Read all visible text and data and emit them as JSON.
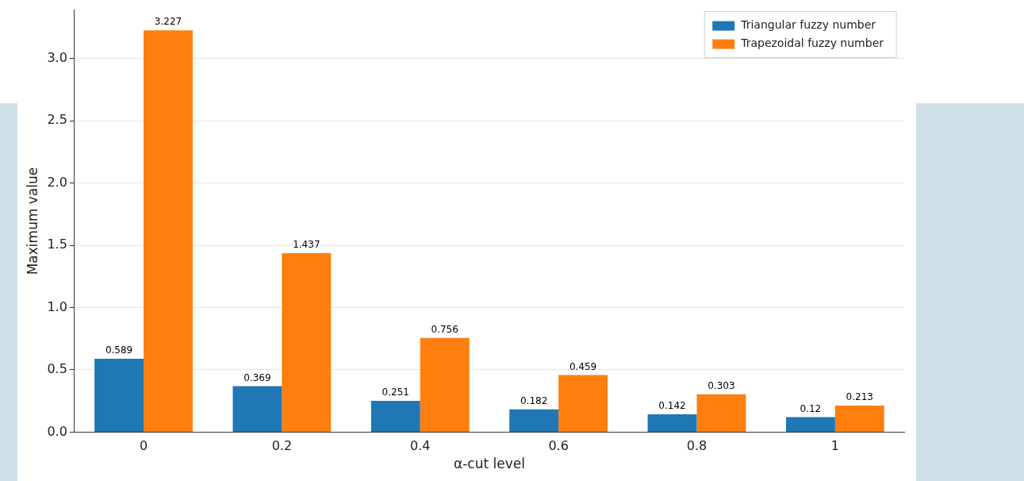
{
  "chart_data": {
    "type": "bar",
    "xlabel": "α-cut level",
    "ylabel": "Maximum value",
    "categories": [
      "0",
      "0.2",
      "0.4",
      "0.6",
      "0.8",
      "1"
    ],
    "series": [
      {
        "name": "Triangular fuzzy number",
        "color": "#1f77b4",
        "values": [
          0.589,
          0.369,
          0.251,
          0.182,
          0.142,
          0.12
        ]
      },
      {
        "name": "Trapezoidal fuzzy number",
        "color": "#ff7f0e",
        "values": [
          3.227,
          1.437,
          0.756,
          0.459,
          0.303,
          0.213
        ]
      }
    ],
    "ylim": [
      0,
      3.39
    ],
    "yticks": [
      {
        "value": 0,
        "label": "0.0"
      },
      {
        "value": 0.5,
        "label": "0.5"
      },
      {
        "value": 1,
        "label": "1.0"
      },
      {
        "value": 1.5,
        "label": "1.5"
      },
      {
        "value": 2,
        "label": "2.0"
      },
      {
        "value": 2.5,
        "label": "2.5"
      },
      {
        "value": 3,
        "label": "3.0"
      }
    ],
    "grid": "y",
    "legend": "top right",
    "data_labels": true
  }
}
